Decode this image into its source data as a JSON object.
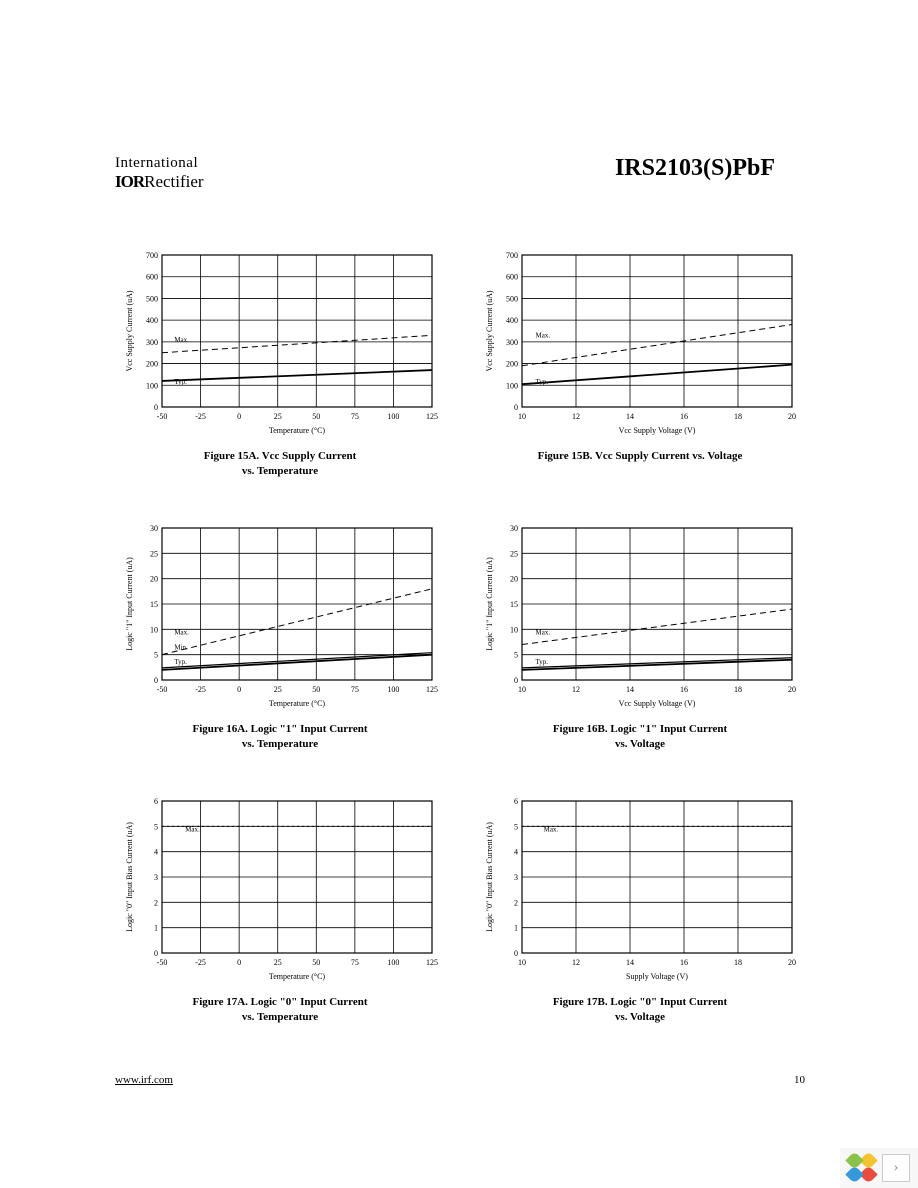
{
  "header": {
    "logo_line1": "International",
    "logo_ior": "IOR",
    "logo_rectifier": "Rectifier",
    "part_number": "IRS2103(S)PbF"
  },
  "footer": {
    "url": "www.irf.com",
    "page_number": "10"
  },
  "charts": {
    "fig15a": {
      "caption_line1": "Figure 15A.  Vcc Supply Current",
      "caption_line2": "vs. Temperature",
      "ylabel": "Vcc Supply Current (uA)",
      "xlabel": "Temperature (°C)",
      "ylim": [
        0,
        700
      ],
      "ytick_step": 100,
      "xlim": [
        -50,
        125
      ],
      "xtick_step": 25,
      "series": [
        {
          "label": "Max.",
          "dash": true,
          "points": [
            [
              -50,
              250
            ],
            [
              125,
              330
            ]
          ]
        },
        {
          "label": "Typ.",
          "dash": false,
          "points": [
            [
              -50,
              120
            ],
            [
              125,
              170
            ]
          ]
        }
      ],
      "label_positions": {
        "Max.": [
          -42,
          300
        ],
        "Typ.": [
          -42,
          105
        ]
      }
    },
    "fig15b": {
      "caption_line1": "Figure 15B.  Vcc Supply Current vs. Voltage",
      "caption_line2": "",
      "ylabel": "Vcc Supply Current (uA)",
      "xlabel": "Vcc Supply Voltage (V)",
      "ylim": [
        0,
        700
      ],
      "ytick_step": 100,
      "xlim": [
        10,
        20
      ],
      "xtick_step": 2,
      "series": [
        {
          "label": "Max.",
          "dash": true,
          "points": [
            [
              10,
              190
            ],
            [
              20,
              380
            ]
          ]
        },
        {
          "label": "Typ.",
          "dash": false,
          "points": [
            [
              10,
              105
            ],
            [
              20,
              195
            ]
          ]
        }
      ],
      "label_positions": {
        "Max.": [
          10.5,
          320
        ],
        "Typ.": [
          10.5,
          105
        ]
      }
    },
    "fig16a": {
      "caption_line1": "Figure 16A.  Logic \"1\" Input Current",
      "caption_line2": "vs. Temperature",
      "ylabel": "Logic \"1\" Input Current (uA)",
      "xlabel": "Temperature (°C)",
      "ylim": [
        0,
        30
      ],
      "ytick_step": 5,
      "xlim": [
        -50,
        125
      ],
      "xtick_step": 25,
      "series": [
        {
          "label": "Max.",
          "dash": true,
          "points": [
            [
              -50,
              5
            ],
            [
              125,
              18
            ]
          ]
        },
        {
          "label": "Typ.",
          "dash": false,
          "points": [
            [
              -50,
              2
            ],
            [
              125,
              5
            ]
          ],
          "double": true
        }
      ],
      "label_positions": {
        "Max.": [
          -42,
          9
        ],
        "Typ.": [
          -42,
          3.2
        ],
        "Min.": [
          -42,
          6
        ]
      }
    },
    "fig16b": {
      "caption_line1": "Figure 16B.  Logic \"1\" Input Current",
      "caption_line2": "vs. Voltage",
      "ylabel": "Logic \"1\" Input Current (uA)",
      "xlabel": "Vcc Supply Voltage (V)",
      "ylim": [
        0,
        30
      ],
      "ytick_step": 5,
      "xlim": [
        10,
        20
      ],
      "xtick_step": 2,
      "series": [
        {
          "label": "Max.",
          "dash": true,
          "points": [
            [
              10,
              7
            ],
            [
              20,
              14
            ]
          ]
        },
        {
          "label": "Typ.",
          "dash": false,
          "points": [
            [
              10,
              2
            ],
            [
              20,
              4
            ]
          ],
          "double": true
        }
      ],
      "label_positions": {
        "Max.": [
          10.5,
          9
        ],
        "Typ.": [
          10.5,
          3.2
        ]
      }
    },
    "fig17a": {
      "caption_line1": "Figure 17A.  Logic \"0\" Input Current",
      "caption_line2": "vs. Temperature",
      "ylabel": "Logic \"0\" Input Bias Current (uA)",
      "xlabel": "Temperature (°C)",
      "ylim": [
        0,
        6
      ],
      "ytick_step": 1,
      "xlim": [
        -50,
        125
      ],
      "xtick_step": 25,
      "series": [
        {
          "label": "Max.",
          "dash": true,
          "points": [
            [
              -50,
              5
            ],
            [
              125,
              5
            ]
          ],
          "dotted": true
        }
      ],
      "label_positions": {
        "Max.": [
          -35,
          4.8
        ]
      }
    },
    "fig17b": {
      "caption_line1": "Figure 17B.  Logic \"0\" Input Current",
      "caption_line2": "vs. Voltage",
      "ylabel": "Logic \"0\" Input Bias Current (uA)",
      "xlabel": "Supply Voltage (V)",
      "ylim": [
        0,
        6
      ],
      "ytick_step": 1,
      "xlim": [
        10,
        20
      ],
      "xtick_step": 2,
      "series": [
        {
          "label": "Max.",
          "dash": true,
          "points": [
            [
              10,
              5
            ],
            [
              20,
              5
            ]
          ],
          "dotted": true
        }
      ],
      "label_positions": {
        "Max.": [
          10.8,
          4.8
        ]
      }
    }
  },
  "colors": {
    "line": "#000000",
    "grid": "#000000",
    "background": "#ffffff"
  },
  "nav_petals": [
    "#f4c430",
    "#e74c3c",
    "#3498db",
    "#8bc34a"
  ]
}
